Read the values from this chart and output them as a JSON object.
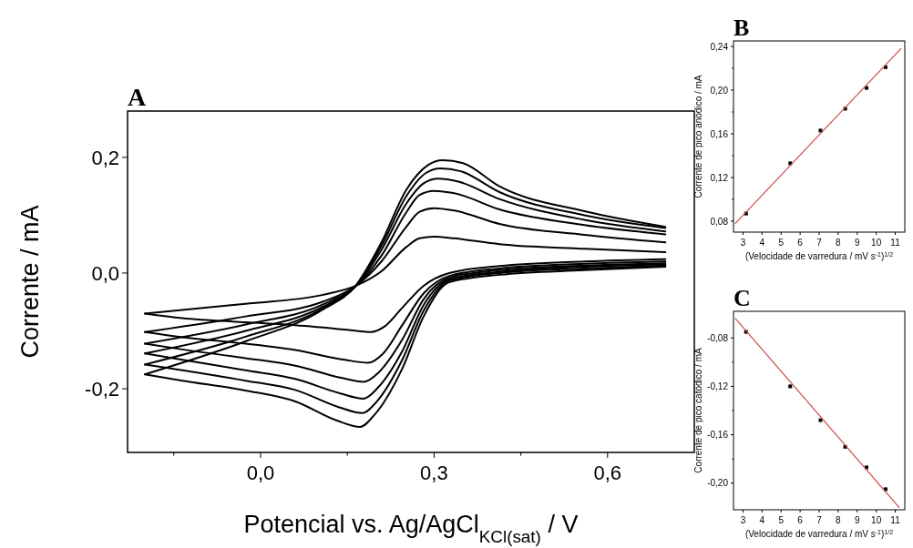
{
  "chart_data": [
    {
      "type": "line",
      "title": "A",
      "xlabel": "Potencial vs. Ag/AgCl$_{KCl(sat)}$ / V",
      "ylabel": "Corrente / mA",
      "xlim": [
        -0.23,
        0.75
      ],
      "ylim": [
        -0.31,
        0.28
      ],
      "xticks": [
        {
          "value": -0.15,
          "label": null
        },
        {
          "value": 0,
          "label": "0,0"
        },
        {
          "value": 0.15,
          "label": null
        },
        {
          "value": 0.3,
          "label": "0,3"
        },
        {
          "value": 0.45,
          "label": null
        },
        {
          "value": 0.6,
          "label": "0,6"
        }
      ],
      "yticks": [
        {
          "value": -0.2,
          "label": "-0,2"
        },
        {
          "value": 0,
          "label": "0,0"
        },
        {
          "value": 0.2,
          "label": "0,2"
        }
      ],
      "series": [
        {
          "color": "#000000",
          "x": [
            -0.2,
            -0.026,
            0.106,
            0.165,
            0.209,
            0.252,
            0.275,
            0.3,
            0.335,
            0.413,
            0.56,
            0.7
          ],
          "values": [
            -0.07,
            -0.053,
            -0.038,
            -0.022,
            0.003,
            0.045,
            0.06,
            0.063,
            0.06,
            0.05,
            0.042,
            0.036
          ]
        },
        {
          "color": "#000000",
          "x": [
            -0.2,
            -0.135,
            -0.026,
            0.06,
            0.15,
            0.19,
            0.215,
            0.245,
            0.282,
            0.326,
            0.413,
            0.56,
            0.7
          ],
          "values": [
            -0.07,
            -0.078,
            -0.085,
            -0.09,
            -0.098,
            -0.102,
            -0.092,
            -0.06,
            -0.022,
            0.0,
            0.012,
            0.02,
            0.024
          ]
        },
        {
          "color": "#000000",
          "x": [
            -0.2,
            -0.026,
            0.106,
            0.165,
            0.209,
            0.252,
            0.275,
            0.3,
            0.335,
            0.413,
            0.56,
            0.7
          ],
          "values": [
            -0.102,
            -0.075,
            -0.05,
            -0.022,
            0.02,
            0.08,
            0.106,
            0.112,
            0.108,
            0.085,
            0.066,
            0.053
          ]
        },
        {
          "color": "#000000",
          "x": [
            -0.2,
            -0.135,
            -0.026,
            0.06,
            0.146,
            0.186,
            0.211,
            0.245,
            0.282,
            0.326,
            0.413,
            0.56,
            0.7
          ],
          "values": [
            -0.102,
            -0.111,
            -0.122,
            -0.133,
            -0.15,
            -0.155,
            -0.14,
            -0.09,
            -0.035,
            -0.005,
            0.008,
            0.016,
            0.02
          ]
        },
        {
          "color": "#000000",
          "x": [
            -0.2,
            -0.026,
            0.106,
            0.165,
            0.209,
            0.252,
            0.275,
            0.3,
            0.335,
            0.413,
            0.56,
            0.7
          ],
          "values": [
            -0.122,
            -0.089,
            -0.055,
            -0.022,
            0.03,
            0.105,
            0.135,
            0.142,
            0.138,
            0.11,
            0.083,
            0.067
          ]
        },
        {
          "color": "#000000",
          "x": [
            -0.2,
            -0.135,
            -0.026,
            0.06,
            0.139,
            0.179,
            0.204,
            0.245,
            0.282,
            0.326,
            0.413,
            0.56,
            0.7
          ],
          "values": [
            -0.122,
            -0.132,
            -0.147,
            -0.16,
            -0.181,
            -0.188,
            -0.172,
            -0.115,
            -0.045,
            -0.008,
            0.005,
            0.013,
            0.017
          ]
        },
        {
          "color": "#000000",
          "x": [
            -0.2,
            -0.026,
            0.106,
            0.165,
            0.209,
            0.252,
            0.282,
            0.307,
            0.342,
            0.413,
            0.56,
            0.7
          ],
          "values": [
            -0.139,
            -0.1,
            -0.059,
            -0.022,
            0.04,
            0.12,
            0.155,
            0.163,
            0.158,
            0.128,
            0.092,
            0.072
          ]
        },
        {
          "color": "#000000",
          "x": [
            -0.2,
            -0.135,
            -0.026,
            0.06,
            0.138,
            0.178,
            0.203,
            0.245,
            0.282,
            0.326,
            0.413,
            0.56,
            0.7
          ],
          "values": [
            -0.139,
            -0.15,
            -0.168,
            -0.183,
            -0.208,
            -0.217,
            -0.198,
            -0.135,
            -0.055,
            -0.011,
            0.002,
            0.011,
            0.015
          ]
        },
        {
          "color": "#000000",
          "x": [
            -0.2,
            -0.026,
            0.106,
            0.165,
            0.209,
            0.252,
            0.286,
            0.311,
            0.346,
            0.413,
            0.56,
            0.7
          ],
          "values": [
            -0.158,
            -0.11,
            -0.062,
            -0.022,
            0.047,
            0.133,
            0.173,
            0.181,
            0.176,
            0.14,
            0.1,
            0.078
          ]
        },
        {
          "color": "#000000",
          "x": [
            -0.2,
            -0.135,
            -0.026,
            0.06,
            0.136,
            0.176,
            0.201,
            0.245,
            0.282,
            0.326,
            0.413,
            0.56,
            0.7
          ],
          "values": [
            -0.158,
            -0.168,
            -0.186,
            -0.202,
            -0.232,
            -0.242,
            -0.222,
            -0.15,
            -0.065,
            -0.013,
            0.0,
            0.008,
            0.013
          ]
        },
        {
          "color": "#000000",
          "x": [
            -0.2,
            -0.026,
            0.106,
            0.165,
            0.209,
            0.252,
            0.29,
            0.315,
            0.35,
            0.413,
            0.56,
            0.7
          ],
          "values": [
            -0.175,
            -0.118,
            -0.064,
            -0.021,
            0.053,
            0.144,
            0.187,
            0.195,
            0.19,
            0.15,
            0.107,
            0.08
          ]
        },
        {
          "color": "#000000",
          "x": [
            -0.2,
            -0.135,
            -0.026,
            0.06,
            0.132,
            0.172,
            0.197,
            0.245,
            0.282,
            0.326,
            0.413,
            0.56,
            0.7
          ],
          "values": [
            -0.175,
            -0.186,
            -0.203,
            -0.222,
            -0.255,
            -0.266,
            -0.245,
            -0.165,
            -0.075,
            -0.016,
            -0.003,
            0.005,
            0.011
          ]
        }
      ]
    },
    {
      "type": "scatter",
      "title": "B",
      "xlabel": "(Velocidade de varredura / mV s$^{-1}$)$^{1/2}$",
      "ylabel": "Corrente de pico anódico / mA",
      "xlim": [
        2.5,
        11.5
      ],
      "ylim": [
        0.07,
        0.245
      ],
      "xticks": [
        3,
        4,
        5,
        6,
        7,
        8,
        9,
        10,
        11
      ],
      "yticks": [
        {
          "value": 0.08,
          "label": "0,08"
        },
        {
          "value": 0.1,
          "label": null
        },
        {
          "value": 0.12,
          "label": "0,12"
        },
        {
          "value": 0.14,
          "label": null
        },
        {
          "value": 0.16,
          "label": "0,16"
        },
        {
          "value": 0.18,
          "label": null
        },
        {
          "value": 0.2,
          "label": "0,20"
        },
        {
          "value": 0.22,
          "label": null
        },
        {
          "value": 0.24,
          "label": "0,24"
        }
      ],
      "series": [
        {
          "marker": "square",
          "color": "#000000",
          "x": [
            3.16,
            5.48,
            7.07,
            8.37,
            9.49,
            10.49
          ],
          "values": [
            0.087,
            0.133,
            0.163,
            0.183,
            0.202,
            0.221
          ]
        },
        {
          "type": "line",
          "color": "#d04848",
          "x": [
            2.6,
            11.3
          ],
          "values": [
            0.078,
            0.238
          ]
        }
      ]
    },
    {
      "type": "scatter",
      "title": "C",
      "xlabel": "(Velocidade de varredura / mV s$^{-1}$)$^{1/2}$",
      "ylabel": "Corrente de pico catódico / mA",
      "xlim": [
        2.5,
        11.5
      ],
      "ylim": [
        -0.222,
        -0.058
      ],
      "xticks": [
        3,
        4,
        5,
        6,
        7,
        8,
        9,
        10,
        11
      ],
      "yticks": [
        {
          "value": -0.08,
          "label": "-0,08"
        },
        {
          "value": -0.1,
          "label": null
        },
        {
          "value": -0.12,
          "label": "-0,12"
        },
        {
          "value": -0.14,
          "label": null
        },
        {
          "value": -0.16,
          "label": "-0,16"
        },
        {
          "value": -0.18,
          "label": null
        },
        {
          "value": -0.2,
          "label": "-0,20"
        }
      ],
      "series": [
        {
          "marker": "square",
          "color": "#000000",
          "x": [
            3.16,
            5.48,
            7.07,
            8.37,
            9.49,
            10.49
          ],
          "values": [
            -0.075,
            -0.12,
            -0.148,
            -0.17,
            -0.187,
            -0.205
          ]
        },
        {
          "type": "line",
          "color": "#d04848",
          "x": [
            2.6,
            11.2
          ],
          "values": [
            -0.064,
            -0.22
          ]
        }
      ]
    }
  ]
}
